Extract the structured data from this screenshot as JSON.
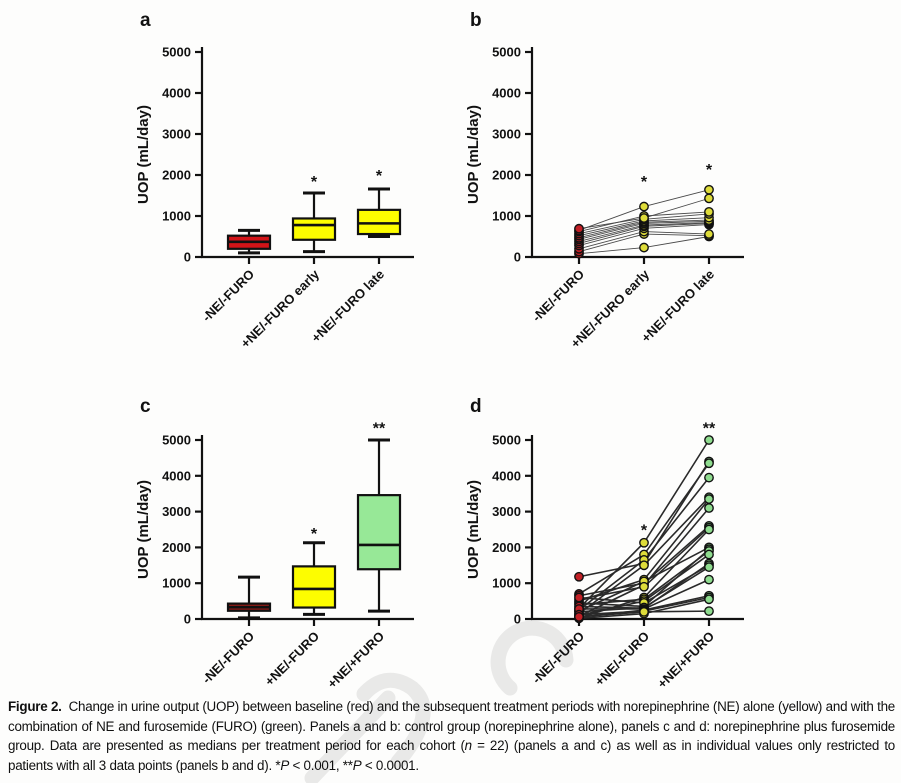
{
  "figure": {
    "caption": {
      "label": "Figure 2.",
      "part1": "Change in urine output (UOP) between baseline (red) and the subsequent treatment periods with norepinephrine (NE) alone (yellow) and with the combination of NE and furosemide (FURO) (green). Panels a and b: control group (norepinephrine alone), panels c and d: norepinephrine plus furosemide group. Data are presented as medians per treatment period for each cohort (",
      "n_italic": "n",
      "part2": " = 22) (panels a and c) as well as in individual values only restricted to patients with all 3 data points (panels b and d). *",
      "p1_italic": "P",
      "part3": " < 0.001, **",
      "p2_italic": "P",
      "part4": " < 0.0001."
    }
  },
  "chart_data": [
    {
      "panel_label": "a",
      "type": "box",
      "ylabel": "UOP (mL/day)",
      "ylim": [
        0,
        5000
      ],
      "yticks": [
        0,
        1000,
        2000,
        3000,
        4000,
        5000
      ],
      "categories": [
        "-NE/-FURO",
        "+NE/-FURO early",
        "+NE/-FURO late"
      ],
      "significance": [
        "",
        "*",
        "*"
      ],
      "sig_y": [
        null,
        1800,
        1950
      ],
      "boxes": [
        {
          "min": 100,
          "q1": 200,
          "median": 370,
          "q3": 520,
          "max": 650,
          "fill": "#d21418"
        },
        {
          "min": 130,
          "q1": 420,
          "median": 780,
          "q3": 940,
          "max": 1560,
          "fill": "#fdfd00"
        },
        {
          "min": 500,
          "q1": 560,
          "median": 820,
          "q3": 1150,
          "max": 1660,
          "fill": "#fdfd00"
        }
      ]
    },
    {
      "panel_label": "b",
      "type": "paired_scatter",
      "ylabel": "UOP (mL/day)",
      "ylim": [
        0,
        5000
      ],
      "yticks": [
        0,
        1000,
        2000,
        3000,
        4000,
        5000
      ],
      "categories": [
        "-NE/-FURO",
        "+NE/-FURO early",
        "+NE/-FURO late"
      ],
      "significance": [
        "",
        "*",
        "*"
      ],
      "sig_y": [
        null,
        1800,
        2100
      ],
      "point_colors": [
        "#c22026",
        "#dedc3a",
        "#dedc3a"
      ],
      "line_color": "#4a4a4a",
      "line_width": 0.9,
      "patients": [
        [
          80,
          230,
          500
        ],
        [
          130,
          560,
          520
        ],
        [
          200,
          620,
          560
        ],
        [
          280,
          700,
          790
        ],
        [
          330,
          750,
          820
        ],
        [
          380,
          780,
          840
        ],
        [
          430,
          820,
          870
        ],
        [
          470,
          850,
          900
        ],
        [
          520,
          880,
          960
        ],
        [
          570,
          920,
          1050
        ],
        [
          620,
          1000,
          1100
        ],
        [
          650,
          1230,
          1640
        ],
        [
          690,
          950,
          1430
        ]
      ]
    },
    {
      "panel_label": "c",
      "type": "box",
      "ylabel": "UOP (mL/day)",
      "ylim": [
        0,
        5000
      ],
      "yticks": [
        0,
        1000,
        2000,
        3000,
        4000,
        5000
      ],
      "categories": [
        "-NE/-FURO",
        "+NE/-FURO",
        "+NE/+FURO"
      ],
      "significance": [
        "",
        "*",
        "**"
      ],
      "sig_y": [
        null,
        2350,
        5300
      ],
      "boxes": [
        {
          "min": 30,
          "q1": 230,
          "median": 330,
          "q3": 430,
          "max": 1170,
          "fill": "#951b16"
        },
        {
          "min": 130,
          "q1": 320,
          "median": 840,
          "q3": 1470,
          "max": 2130,
          "fill": "#fdfd00"
        },
        {
          "min": 220,
          "q1": 1390,
          "median": 2070,
          "q3": 3460,
          "max": 5000,
          "fill": "#97e897"
        }
      ]
    },
    {
      "panel_label": "d",
      "type": "paired_scatter",
      "ylabel": "UOP (mL/day)",
      "ylim": [
        0,
        5000
      ],
      "yticks": [
        0,
        1000,
        2000,
        3000,
        4000,
        5000
      ],
      "categories": [
        "-NE/-FURO",
        "+NE/-FURO",
        "+NE/+FURO"
      ],
      "significance": [
        "",
        "*",
        "**"
      ],
      "sig_y": [
        null,
        2450,
        5300
      ],
      "point_colors": [
        "#c22026",
        "#dedc3a",
        "#8fdc8f"
      ],
      "line_color": "#2a2a2a",
      "line_width": 1.6,
      "patients": [
        [
          300,
          2130,
          5000
        ],
        [
          1180,
          1550,
          4400
        ],
        [
          700,
          1800,
          4350
        ],
        [
          250,
          1650,
          3950
        ],
        [
          150,
          1500,
          3400
        ],
        [
          500,
          1100,
          3350
        ],
        [
          80,
          950,
          3100
        ],
        [
          650,
          1000,
          2600
        ],
        [
          220,
          1050,
          2000
        ],
        [
          550,
          900,
          2550
        ],
        [
          30,
          600,
          2500
        ],
        [
          450,
          350,
          1950
        ],
        [
          400,
          550,
          1900
        ],
        [
          100,
          500,
          1800
        ],
        [
          350,
          300,
          1550
        ],
        [
          600,
          450,
          1500
        ],
        [
          200,
          320,
          1450
        ],
        [
          280,
          280,
          1100
        ],
        [
          50,
          250,
          650
        ],
        [
          120,
          220,
          600
        ],
        [
          20,
          150,
          550
        ],
        [
          60,
          200,
          220
        ]
      ]
    }
  ]
}
